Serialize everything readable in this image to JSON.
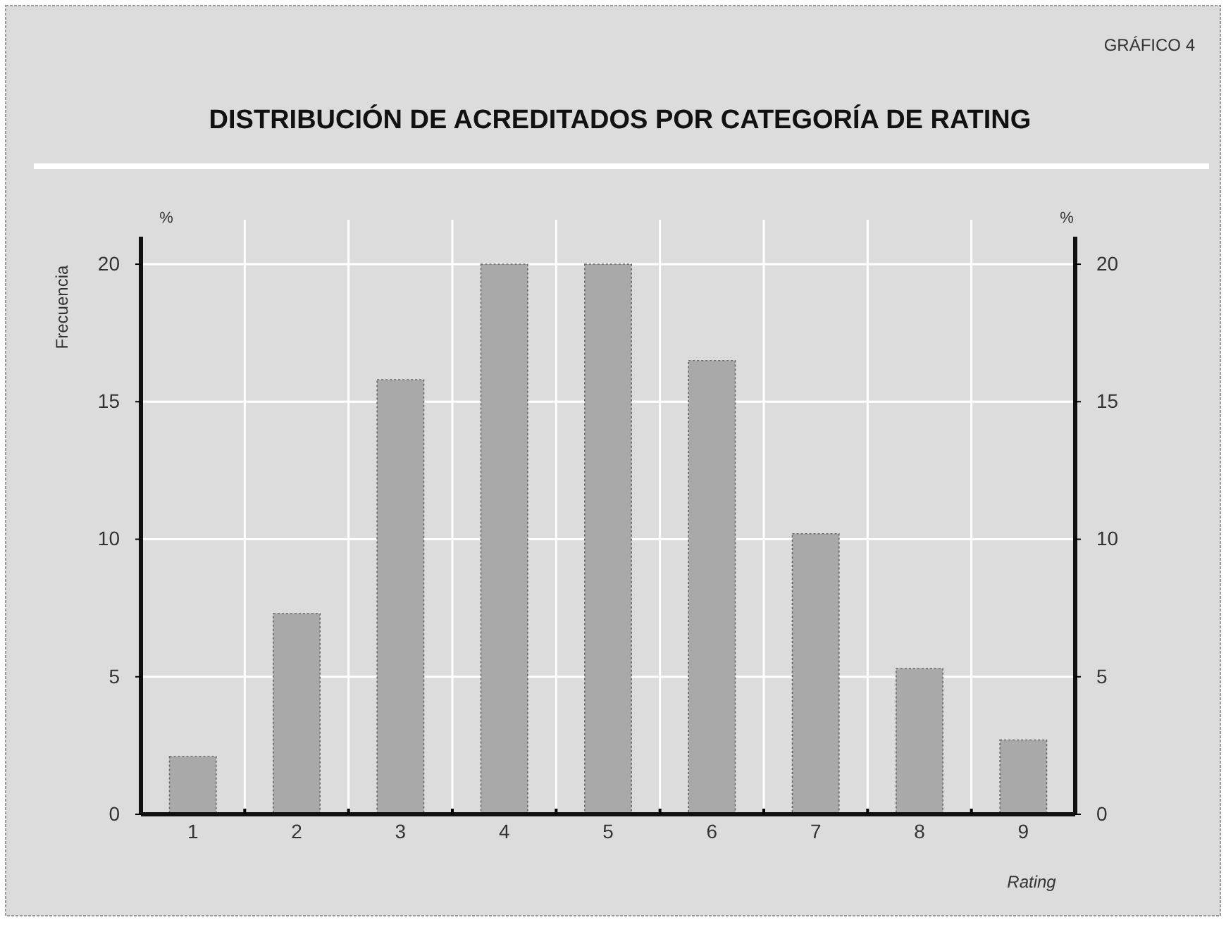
{
  "chart_data": {
    "type": "bar",
    "title": "DISTRIBUCIÓN DE ACREDITADOS POR CATEGORÍA DE RATING",
    "xlabel": "Rating",
    "ylabel": "Frecuencia",
    "y2label": "%",
    "annotations": [
      "GRÁFICO 4",
      "%"
    ],
    "categories": [
      "1",
      "2",
      "3",
      "4",
      "5",
      "6",
      "7",
      "8",
      "9"
    ],
    "values": [
      2.1,
      7.3,
      15.8,
      20,
      20,
      16.5,
      10.2,
      5.3,
      2.7
    ],
    "color": "#a9a9a9",
    "ylim": [
      0,
      21
    ],
    "yticks": [
      0,
      5,
      10,
      15,
      20
    ],
    "y2lim": [
      0,
      21
    ],
    "y2ticks": [
      0,
      5,
      10,
      15,
      20
    ],
    "grid": true
  }
}
